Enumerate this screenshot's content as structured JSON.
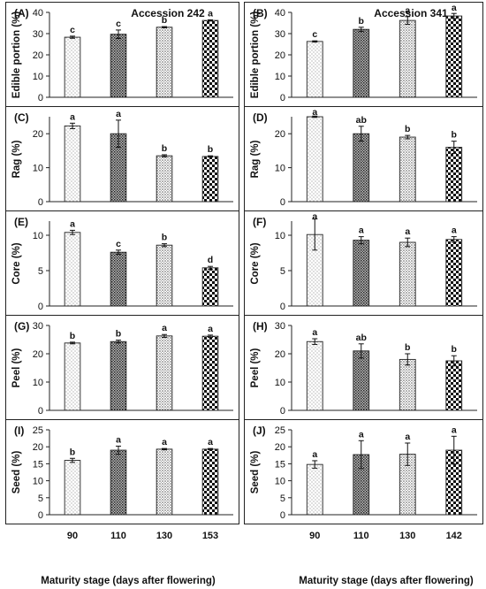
{
  "figure": {
    "xlabel": "Maturity stage (days after flowering)"
  },
  "chart_data": [
    {
      "type": "bar",
      "panel": "(A)",
      "title": "Accession 242",
      "ylabel": "Edible portion (%)",
      "ylim": [
        0,
        40
      ],
      "yticks": [
        0,
        10,
        20,
        30,
        40
      ],
      "categories": [
        "90",
        "110",
        "130",
        "153"
      ],
      "values": [
        28.3,
        29.7,
        33.0,
        36.2
      ],
      "errors": [
        0.5,
        2.0,
        0.3,
        0.3
      ],
      "letters": [
        "c",
        "c",
        "b",
        "a"
      ],
      "show_xticks": false
    },
    {
      "type": "bar",
      "panel": "(B)",
      "title": "Accession 341",
      "ylabel": "Edible portion (%)",
      "ylim": [
        0,
        40
      ],
      "yticks": [
        0,
        10,
        20,
        30,
        40
      ],
      "categories": [
        "90",
        "110",
        "130",
        "142"
      ],
      "values": [
        26.3,
        32.0,
        36.2,
        38.3
      ],
      "errors": [
        0.3,
        1.0,
        1.8,
        1.2
      ],
      "letters": [
        "c",
        "b",
        "a",
        "a"
      ],
      "show_xticks": false
    },
    {
      "type": "bar",
      "panel": "(C)",
      "title": "",
      "ylabel": "Rag (%)",
      "ylim": [
        0,
        25
      ],
      "yticks": [
        0,
        10,
        20
      ],
      "categories": [
        "90",
        "110",
        "130",
        "153"
      ],
      "values": [
        22.3,
        20.0,
        13.5,
        13.3
      ],
      "errors": [
        0.8,
        4.0,
        0.3,
        0.2
      ],
      "letters": [
        "a",
        "a",
        "b",
        "b"
      ],
      "show_xticks": false
    },
    {
      "type": "bar",
      "panel": "(D)",
      "title": "",
      "ylabel": "Rag (%)",
      "ylim": [
        0,
        25
      ],
      "yticks": [
        0,
        10,
        20
      ],
      "categories": [
        "90",
        "110",
        "130",
        "142"
      ],
      "values": [
        25.0,
        20.0,
        19.0,
        16.0
      ],
      "errors": [
        0.2,
        2.2,
        0.5,
        1.8
      ],
      "letters": [
        "a",
        "ab",
        "b",
        "b"
      ],
      "show_xticks": false
    },
    {
      "type": "bar",
      "panel": "(E)",
      "title": "",
      "ylabel": "Core (%)",
      "ylim": [
        0,
        12
      ],
      "yticks": [
        0,
        5,
        10
      ],
      "categories": [
        "90",
        "110",
        "130",
        "153"
      ],
      "values": [
        10.4,
        7.6,
        8.6,
        5.4
      ],
      "errors": [
        0.3,
        0.3,
        0.2,
        0.2
      ],
      "letters": [
        "a",
        "c",
        "b",
        "d"
      ],
      "show_xticks": false
    },
    {
      "type": "bar",
      "panel": "(F)",
      "title": "",
      "ylabel": "Core (%)",
      "ylim": [
        0,
        12
      ],
      "yticks": [
        0,
        5,
        10
      ],
      "categories": [
        "90",
        "110",
        "130",
        "142"
      ],
      "values": [
        10.1,
        9.3,
        9.0,
        9.4
      ],
      "errors": [
        2.2,
        0.5,
        0.6,
        0.4
      ],
      "letters": [
        "a",
        "a",
        "a",
        "a"
      ],
      "show_xticks": false
    },
    {
      "type": "bar",
      "panel": "(G)",
      "title": "",
      "ylabel": "Peel (%)",
      "ylim": [
        0,
        30
      ],
      "yticks": [
        0,
        10,
        20,
        30
      ],
      "categories": [
        "90",
        "110",
        "130",
        "153"
      ],
      "values": [
        23.8,
        24.3,
        26.3,
        26.2
      ],
      "errors": [
        0.3,
        0.5,
        0.5,
        0.4
      ],
      "letters": [
        "b",
        "b",
        "a",
        "a"
      ],
      "show_xticks": false
    },
    {
      "type": "bar",
      "panel": "(H)",
      "title": "",
      "ylabel": "Peel (%)",
      "ylim": [
        0,
        30
      ],
      "yticks": [
        0,
        10,
        20,
        30
      ],
      "categories": [
        "90",
        "110",
        "130",
        "142"
      ],
      "values": [
        24.3,
        21.0,
        18.0,
        17.5
      ],
      "errors": [
        1.0,
        2.5,
        2.0,
        1.8
      ],
      "letters": [
        "a",
        "ab",
        "b",
        "b"
      ],
      "show_xticks": false
    },
    {
      "type": "bar",
      "panel": "(I)",
      "title": "",
      "ylabel": "Seed (%)",
      "ylim": [
        0,
        25
      ],
      "yticks": [
        0,
        5,
        10,
        15,
        20,
        25
      ],
      "categories": [
        "90",
        "110",
        "130",
        "153"
      ],
      "values": [
        16.0,
        19.0,
        19.3,
        19.3
      ],
      "errors": [
        0.6,
        1.2,
        0.2,
        0.2
      ],
      "letters": [
        "b",
        "a",
        "a",
        "a"
      ],
      "show_xticks": true
    },
    {
      "type": "bar",
      "panel": "(J)",
      "title": "",
      "ylabel": "Seed (%)",
      "ylim": [
        0,
        25
      ],
      "yticks": [
        0,
        5,
        10,
        15,
        20,
        25
      ],
      "categories": [
        "90",
        "110",
        "130",
        "142"
      ],
      "values": [
        14.8,
        17.7,
        17.8,
        19.0
      ],
      "errors": [
        1.1,
        4.1,
        3.3,
        4.1
      ],
      "letters": [
        "a",
        "a",
        "a",
        "a"
      ],
      "show_xticks": true
    }
  ]
}
